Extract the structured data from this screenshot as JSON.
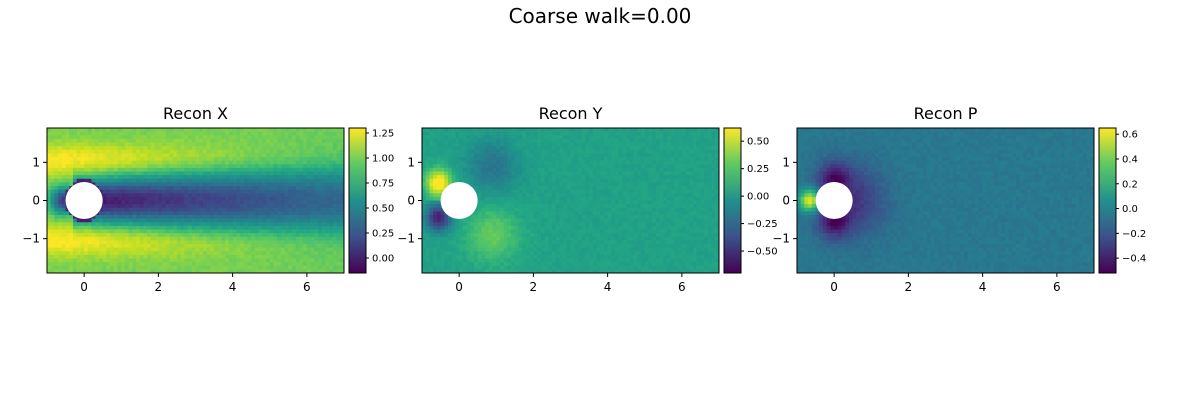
{
  "figure": {
    "suptitle": "Coarse walk=0.00"
  },
  "chart_data": [
    {
      "type": "heatmap",
      "title": "Recon X",
      "field": "x",
      "xlim": [
        -1,
        7
      ],
      "ylim": [
        -1.9,
        1.9
      ],
      "xticks": [
        "0",
        "2",
        "4",
        "6"
      ],
      "yticks": [
        "1",
        "0",
        "−1"
      ],
      "obstacle": {
        "shape": "circle",
        "center": [
          0,
          0
        ],
        "radius": 0.5
      },
      "colormap": "viridis",
      "colorbar": {
        "min": -0.15,
        "max": 1.3,
        "ticks": [
          "1.25",
          "1.00",
          "0.75",
          "0.50",
          "0.25",
          "0.00"
        ]
      }
    },
    {
      "type": "heatmap",
      "title": "Recon Y",
      "field": "y",
      "xlim": [
        -1,
        7
      ],
      "ylim": [
        -1.9,
        1.9
      ],
      "xticks": [
        "0",
        "2",
        "4",
        "6"
      ],
      "yticks": [
        "1",
        "0",
        "−1"
      ],
      "obstacle": {
        "shape": "circle",
        "center": [
          0,
          0
        ],
        "radius": 0.5
      },
      "colormap": "viridis",
      "colorbar": {
        "min": -0.7,
        "max": 0.62,
        "ticks": [
          "0.50",
          "0.25",
          "0.00",
          "−0.25",
          "−0.50"
        ]
      }
    },
    {
      "type": "heatmap",
      "title": "Recon P",
      "field": "p",
      "xlim": [
        -1,
        7
      ],
      "ylim": [
        -1.9,
        1.9
      ],
      "xticks": [
        "0",
        "2",
        "4",
        "6"
      ],
      "yticks": [
        "1",
        "0",
        "−1"
      ],
      "obstacle": {
        "shape": "circle",
        "center": [
          0,
          0
        ],
        "radius": 0.5
      },
      "colormap": "viridis",
      "colorbar": {
        "min": -0.52,
        "max": 0.65,
        "ticks": [
          "0.6",
          "0.4",
          "0.2",
          "0.0",
          "−0.2",
          "−0.4"
        ]
      }
    }
  ]
}
